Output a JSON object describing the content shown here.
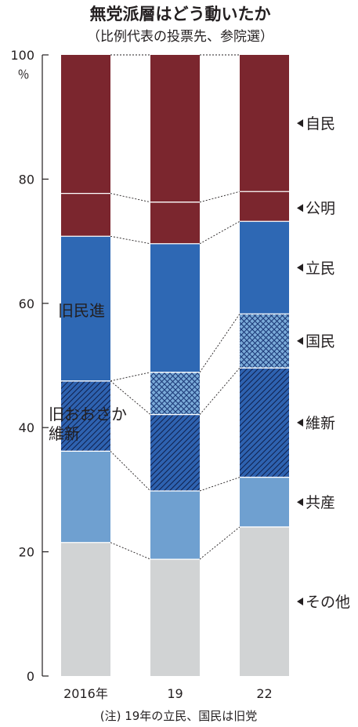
{
  "chart_data": {
    "type": "bar",
    "stacked": true,
    "title": "無党派層はどう動いたか",
    "subtitle": "（比例代表の投票先、参院選）",
    "ylabel": "％",
    "ylim": [
      0,
      100
    ],
    "yticks": [
      0,
      20,
      40,
      60,
      80,
      100
    ],
    "categories": [
      "2016年",
      "19",
      "22"
    ],
    "series": [
      {
        "key": "other",
        "name": "その他",
        "color": "#d1d3d4",
        "pattern": "none",
        "values": [
          21.5,
          18.8,
          24.0
        ]
      },
      {
        "key": "jcp",
        "name": "共産",
        "color": "#6fa0d0",
        "pattern": "none",
        "values": [
          14.7,
          11.0,
          8.0
        ]
      },
      {
        "key": "ishin",
        "name": "維新",
        "color": "#2e62b0",
        "pattern": "diagonal",
        "values": [
          11.3,
          12.3,
          17.6
        ]
      },
      {
        "key": "dpfp",
        "name": "国民",
        "color": "#7aaad8",
        "pattern": "crosshatch",
        "values": [
          0,
          6.8,
          8.7
        ]
      },
      {
        "key": "cdp",
        "name": "立民",
        "color": "#2e68b4",
        "pattern": "none",
        "values": [
          23.3,
          20.7,
          14.9
        ]
      },
      {
        "key": "komei",
        "name": "公明",
        "color": "#7b262e",
        "pattern": "none",
        "values": [
          6.9,
          6.7,
          4.8
        ]
      },
      {
        "key": "ldp",
        "name": "自民",
        "color": "#7b262e",
        "pattern": "none",
        "values": [
          22.3,
          23.7,
          22.0
        ]
      }
    ],
    "annotations": {
      "old_dp": "旧民進",
      "old_osaka_line1": "旧おおさか",
      "old_osaka_line2": "維新"
    },
    "legend_position": "right",
    "note": "(注) 19年の立民、国民は旧党",
    "grid": false
  }
}
